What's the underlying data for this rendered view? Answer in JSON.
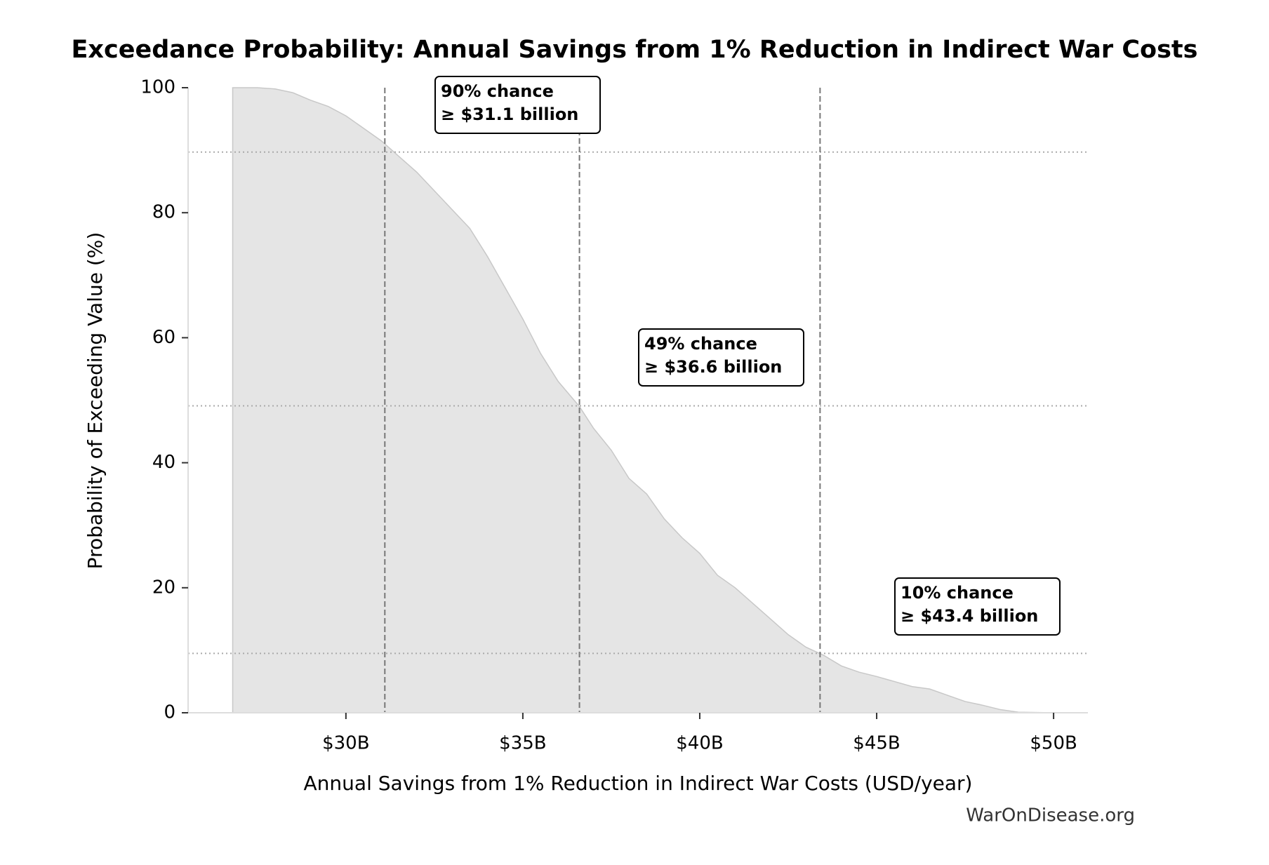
{
  "chart_data": {
    "type": "line",
    "title": "Exceedance Probability: Annual Savings from 1% Reduction in Indirect War Costs",
    "x_label": "Annual Savings from 1% Reduction in Indirect War Costs (USD/year)",
    "y_label": "Probability of Exceeding Value (%)",
    "source": "WarOnDisease.org",
    "x": [
      26.8,
      27.5,
      28,
      28.5,
      29,
      29.5,
      30,
      30.5,
      31,
      31.5,
      32,
      32.5,
      33,
      33.5,
      34,
      34.5,
      35,
      35.5,
      36,
      36.6,
      37,
      37.5,
      38,
      38.5,
      39,
      39.5,
      40,
      40.5,
      41,
      41.5,
      42,
      42.5,
      43,
      43.5,
      44,
      44.5,
      45,
      45.5,
      46,
      46.5,
      47,
      47.5,
      48,
      48.5,
      49,
      50
    ],
    "series": [
      {
        "name": "Exceedance probability",
        "color": "#000000",
        "fill": "#e5e5e5",
        "values": [
          100,
          100,
          99.8,
          99.2,
          98,
          97,
          95.5,
          93.5,
          91.5,
          89,
          86.5,
          83.5,
          80.5,
          77.5,
          73,
          68,
          63,
          57.5,
          53,
          49,
          45.5,
          42,
          37.5,
          35,
          31,
          28,
          25.5,
          22,
          20,
          17.5,
          15,
          12.5,
          10.5,
          9.2,
          7.5,
          6.5,
          5.8,
          5,
          4.2,
          3.8,
          2.8,
          1.8,
          1.2,
          0.5,
          0.1,
          0
        ]
      }
    ],
    "annotations": [
      {
        "x": 31.1,
        "y": 89.7,
        "lines": [
          "90% chance",
          "≥ $31.1 billion"
        ]
      },
      {
        "x": 36.6,
        "y": 49.1,
        "lines": [
          "49% chance",
          "≥ $36.6 billion"
        ]
      },
      {
        "x": 43.4,
        "y": 9.5,
        "lines": [
          "10% chance",
          "≥ $43.4 billion"
        ]
      }
    ],
    "xlim": [
      25.54,
      50.97
    ],
    "ylim": [
      0,
      100
    ],
    "xticks": [
      {
        "value": 30,
        "label": "$30B"
      },
      {
        "value": 35,
        "label": "$35B"
      },
      {
        "value": 40,
        "label": "$40B"
      },
      {
        "value": 45,
        "label": "$45B"
      },
      {
        "value": 50,
        "label": "$50B"
      }
    ],
    "yticks": [
      0,
      20,
      40,
      60,
      80,
      100
    ],
    "grid": false
  }
}
